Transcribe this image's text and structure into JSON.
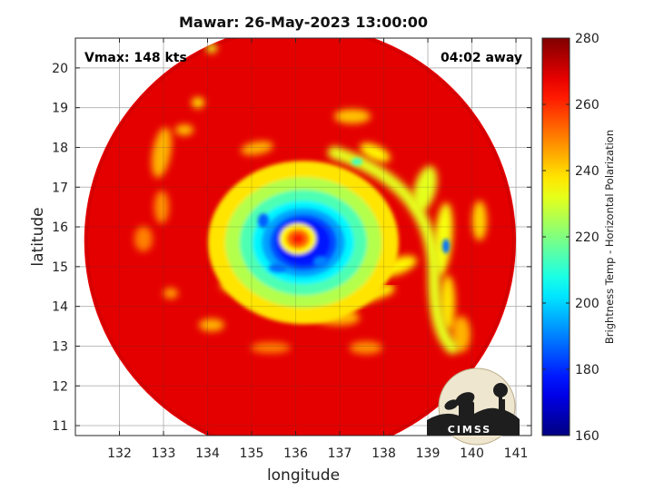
{
  "chart_data": {
    "type": "heatmap",
    "title": "Mawar: 26-May-2023 13:00:00",
    "xlabel": "longitude",
    "ylabel": "latitude",
    "xlim": [
      131.0,
      141.35
    ],
    "ylim": [
      10.75,
      20.75
    ],
    "x_ticks": [
      "132",
      "133",
      "134",
      "135",
      "136",
      "137",
      "138",
      "139",
      "140",
      "141"
    ],
    "y_ticks": [
      "11",
      "12",
      "13",
      "14",
      "15",
      "16",
      "17",
      "18",
      "19",
      "20"
    ],
    "grid": true,
    "annotations": {
      "left": "Vmax: 148 kts",
      "right": "04:02 away"
    },
    "colorbar": {
      "label": "Brightness Temp - Horizontal Polarization",
      "range": [
        160,
        280
      ],
      "ticks": [
        "160",
        "180",
        "200",
        "220",
        "240",
        "260",
        "280"
      ],
      "colormap": "jet"
    },
    "storm": {
      "eye_center": [
        136.05,
        15.7
      ],
      "eye_temperature": 262,
      "eyewall_temperature": 178,
      "swath_center": [
        136.1,
        15.65
      ],
      "swath_radius_deg": 4.9,
      "background_temperature": 268
    }
  },
  "logo": {
    "text": "CIMSS"
  }
}
